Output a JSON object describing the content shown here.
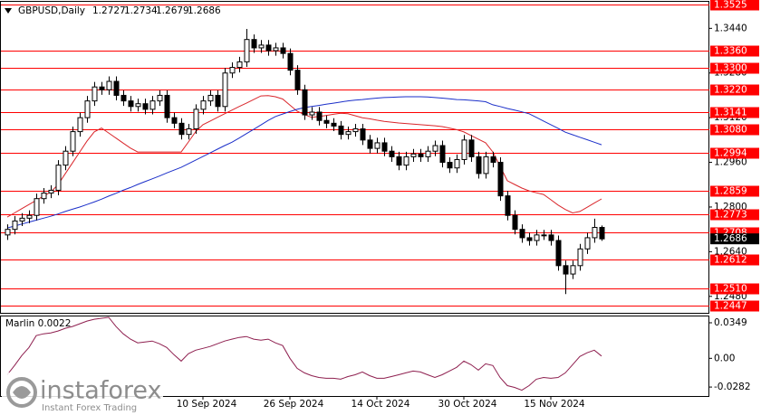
{
  "chart_data": [
    {
      "type": "candlestick",
      "title": "GBPUSD,Daily",
      "categories": [
        null,
        null,
        null,
        null,
        null,
        null,
        null,
        null,
        null,
        null,
        null,
        null,
        null,
        null,
        null,
        null,
        null,
        null,
        null,
        null,
        null,
        null,
        null,
        null,
        null,
        null,
        null,
        "10 Sep 2024",
        null,
        null,
        null,
        null,
        null,
        null,
        null,
        null,
        null,
        null,
        null,
        "26 Sep 2024",
        null,
        null,
        null,
        null,
        null,
        null,
        null,
        null,
        null,
        null,
        null,
        "14 Oct 2024",
        null,
        null,
        null,
        null,
        null,
        null,
        null,
        null,
        null,
        null,
        null,
        "30 Oct 2024",
        null,
        null,
        null,
        null,
        null,
        null,
        null,
        null,
        null,
        null,
        null,
        "15 Nov 2024",
        null,
        null,
        null,
        null,
        null,
        null,
        null
      ],
      "open": [
        1.27,
        1.272,
        1.275,
        1.276,
        1.277,
        1.283,
        1.285,
        1.286,
        1.295,
        1.3,
        1.307,
        1.312,
        1.318,
        1.323,
        1.322,
        1.325,
        1.32,
        1.318,
        1.316,
        1.317,
        1.315,
        1.318,
        1.32,
        1.312,
        1.31,
        1.306,
        1.308,
        1.315,
        1.318,
        1.32,
        1.316,
        1.328,
        1.33,
        1.332,
        1.34,
        1.337,
        1.338,
        1.336,
        1.337,
        1.335,
        1.329,
        1.322,
        1.313,
        1.314,
        1.311,
        1.31,
        1.309,
        1.306,
        1.307,
        1.308,
        1.304,
        1.301,
        1.303,
        1.3,
        1.298,
        1.295,
        1.298,
        1.299,
        1.298,
        1.3,
        1.302,
        1.296,
        1.294,
        1.297,
        1.304,
        1.298,
        1.292,
        1.298,
        1.296,
        1.284,
        1.277,
        1.272,
        1.269,
        1.268,
        1.27,
        1.27,
        1.268,
        1.259,
        1.256,
        1.259,
        1.265,
        1.269,
        1.2727
      ],
      "high": [
        1.2738,
        1.2768,
        1.2778,
        1.2788,
        1.2848,
        1.2868,
        1.2878,
        1.2968,
        1.3018,
        1.3088,
        1.3138,
        1.3198,
        1.3248,
        1.3248,
        1.3268,
        1.3268,
        1.3218,
        1.3198,
        1.3188,
        1.3188,
        1.3198,
        1.3218,
        1.3218,
        1.3138,
        1.3118,
        1.3098,
        1.3168,
        1.3198,
        1.3218,
        1.3218,
        1.3298,
        1.3318,
        1.3338,
        1.3438,
        1.3418,
        1.3398,
        1.3398,
        1.3388,
        1.3388,
        1.3368,
        1.3308,
        1.3238,
        1.3158,
        1.3158,
        1.3128,
        1.3118,
        1.3108,
        1.3088,
        1.3098,
        1.3098,
        1.3058,
        1.3048,
        1.3048,
        1.3018,
        1.2998,
        1.2998,
        1.3008,
        1.3008,
        1.3018,
        1.3038,
        1.3038,
        1.2978,
        1.2988,
        1.3058,
        1.3058,
        1.2998,
        1.2998,
        1.2998,
        1.2978,
        1.2858,
        1.2788,
        1.2738,
        1.2708,
        1.2718,
        1.2718,
        1.2718,
        1.2698,
        1.2608,
        1.2608,
        1.2668,
        1.2708,
        1.2758,
        1.2734
      ],
      "low": [
        1.2682,
        1.2702,
        1.2732,
        1.2742,
        1.2752,
        1.2812,
        1.2832,
        1.2842,
        1.2932,
        1.2982,
        1.3052,
        1.3102,
        1.3162,
        1.3202,
        1.3202,
        1.3182,
        1.3162,
        1.3142,
        1.3142,
        1.3132,
        1.3132,
        1.3162,
        1.3102,
        1.3082,
        1.3042,
        1.3042,
        1.3062,
        1.3132,
        1.3162,
        1.3142,
        1.3142,
        1.3262,
        1.3282,
        1.3302,
        1.3352,
        1.3352,
        1.3342,
        1.3342,
        1.3332,
        1.3272,
        1.3202,
        1.3112,
        1.3112,
        1.3092,
        1.3082,
        1.3072,
        1.3042,
        1.3042,
        1.3052,
        1.3022,
        1.2992,
        1.2992,
        1.2982,
        1.2962,
        1.2932,
        1.2932,
        1.2962,
        1.2962,
        1.2962,
        1.2982,
        1.2942,
        1.2922,
        1.2922,
        1.2952,
        1.2962,
        1.2902,
        1.2902,
        1.2942,
        1.2822,
        1.2752,
        1.2702,
        1.2672,
        1.2662,
        1.2662,
        1.2682,
        1.2662,
        1.2572,
        1.2488,
        1.2542,
        1.2572,
        1.2632,
        1.2672,
        1.2679
      ],
      "close": [
        1.272,
        1.275,
        1.276,
        1.277,
        1.283,
        1.285,
        1.286,
        1.295,
        1.3,
        1.307,
        1.312,
        1.318,
        1.323,
        1.322,
        1.325,
        1.32,
        1.318,
        1.316,
        1.317,
        1.315,
        1.318,
        1.32,
        1.312,
        1.31,
        1.306,
        1.308,
        1.315,
        1.318,
        1.32,
        1.316,
        1.328,
        1.33,
        1.332,
        1.34,
        1.337,
        1.338,
        1.336,
        1.337,
        1.335,
        1.329,
        1.322,
        1.313,
        1.314,
        1.311,
        1.31,
        1.309,
        1.306,
        1.307,
        1.308,
        1.304,
        1.301,
        1.303,
        1.3,
        1.298,
        1.295,
        1.298,
        1.299,
        1.298,
        1.3,
        1.302,
        1.296,
        1.294,
        1.297,
        1.304,
        1.298,
        1.292,
        1.298,
        1.296,
        1.284,
        1.277,
        1.272,
        1.269,
        1.268,
        1.27,
        1.27,
        1.268,
        1.259,
        1.256,
        1.259,
        1.265,
        1.269,
        1.2727,
        1.2686
      ],
      "up_color": "#ffffff",
      "down_color": "#000000",
      "overlays": [
        {
          "color": "#d9262b",
          "values": [
            1.2764,
            1.2779,
            1.2794,
            1.2809,
            1.2824,
            1.2839,
            1.2854,
            1.288,
            1.2919,
            1.2958,
            1.2997,
            1.3036,
            1.3069,
            1.3083,
            1.3065,
            1.3047,
            1.3029,
            1.3011,
            1.2997,
            1.2997,
            1.2997,
            1.2997,
            1.2997,
            1.2997,
            1.2997,
            1.3033,
            1.307,
            1.3095,
            1.3108,
            1.3121,
            1.3134,
            1.3147,
            1.316,
            1.3172,
            1.3185,
            1.3198,
            1.3199,
            1.3195,
            1.3187,
            1.3165,
            1.3143,
            1.3131,
            1.3121,
            1.3124,
            1.3128,
            1.3132,
            1.3136,
            1.3134,
            1.3127,
            1.312,
            1.3116,
            1.3111,
            1.3107,
            1.3104,
            1.3101,
            1.3099,
            1.3097,
            1.3095,
            1.3093,
            1.3091,
            1.3088,
            1.3083,
            1.3077,
            1.3069,
            1.3056,
            1.3043,
            1.303,
            1.2997,
            1.2946,
            1.2894,
            1.2881,
            1.2868,
            1.2858,
            1.2851,
            1.2845,
            1.2826,
            1.2807,
            1.2791,
            1.2779,
            1.2784,
            1.2799,
            1.2814,
            1.2829
          ]
        },
        {
          "color": "#1b2fc9",
          "values": [
            1.2725,
            1.2732,
            1.2739,
            1.2746,
            1.2753,
            1.276,
            1.2767,
            1.2775,
            1.2784,
            1.2792,
            1.28,
            1.2809,
            1.2818,
            1.2828,
            1.2839,
            1.2849,
            1.286,
            1.287,
            1.2881,
            1.2891,
            1.2901,
            1.2911,
            1.2922,
            1.2932,
            1.2942,
            1.2955,
            1.2968,
            1.2981,
            1.2994,
            1.3007,
            1.302,
            1.3032,
            1.3047,
            1.3063,
            1.3078,
            1.3094,
            1.311,
            1.3124,
            1.3133,
            1.3142,
            1.315,
            1.3156,
            1.316,
            1.3164,
            1.3168,
            1.3172,
            1.3176,
            1.318,
            1.3183,
            1.3185,
            1.3188,
            1.319,
            1.3192,
            1.3193,
            1.3194,
            1.3195,
            1.3195,
            1.3195,
            1.3194,
            1.3192,
            1.319,
            1.3188,
            1.3185,
            1.3184,
            1.3182,
            1.318,
            1.3177,
            1.3166,
            1.316,
            1.3153,
            1.3147,
            1.3141,
            1.3134,
            1.3121,
            1.3108,
            1.3095,
            1.3082,
            1.3068,
            1.3059,
            1.305,
            1.3041,
            1.3032,
            1.3023
          ]
        }
      ],
      "levels": {
        "color": "#ff0000",
        "values": [
          1.3525,
          {
            "value": 1.336,
            "label": "1.3360"
          },
          {
            "value": 1.33,
            "label": "1.3300"
          },
          {
            "value": 1.322,
            "label": "1.3220"
          },
          1.3141,
          {
            "value": 1.308,
            "label": "1.3080"
          },
          1.2994,
          1.2859,
          1.2773,
          1.2708,
          1.2612,
          {
            "value": 1.251,
            "label": "1.2510"
          },
          1.2447
        ]
      },
      "ylim": [
        1.2421,
        1.3535
      ],
      "yticks": [
        {
          "value": 1.344,
          "label": "1.3440"
        },
        {
          "value": 1.328,
          "label": "1.3280"
        },
        {
          "value": 1.312,
          "label": "1.3120"
        },
        {
          "value": 1.296,
          "label": "1.2960"
        },
        {
          "value": 1.28,
          "label": "1.2800"
        },
        {
          "value": 1.264,
          "label": "1.2640"
        },
        {
          "value": 1.248,
          "label": "1.2480"
        }
      ],
      "grid": false
    },
    {
      "type": "line",
      "title": "Marlin 0.0022",
      "color": "#8e1f4f",
      "values": [
        -0.0161,
        -0.0071,
        0.0027,
        0.0107,
        0.0223,
        0.0241,
        0.025,
        0.0268,
        0.0295,
        0.0313,
        0.0339,
        0.0366,
        0.0384,
        0.0393,
        0.0402,
        0.0313,
        0.0241,
        0.0188,
        0.0152,
        0.0161,
        0.017,
        0.0143,
        0.0107,
        0.0036,
        -0.0027,
        0.0045,
        0.008,
        0.0098,
        0.0116,
        0.0143,
        0.017,
        0.0188,
        0.0205,
        0.0214,
        0.0188,
        0.0179,
        0.0188,
        0.0152,
        0.0125,
        0,
        -0.0098,
        -0.0143,
        -0.017,
        -0.0188,
        -0.0196,
        -0.0196,
        -0.0205,
        -0.0179,
        -0.0161,
        -0.0134,
        -0.017,
        -0.0196,
        -0.0196,
        -0.0179,
        -0.0161,
        -0.0143,
        -0.0125,
        -0.0134,
        -0.0161,
        -0.0188,
        -0.0161,
        -0.0125,
        -0.0089,
        -0.0027,
        -0.0063,
        -0.0116,
        -0.0054,
        -0.0071,
        -0.0188,
        -0.0268,
        -0.0286,
        -0.0313,
        -0.0268,
        -0.0205,
        -0.0188,
        -0.0196,
        -0.0188,
        -0.0143,
        -0.0063,
        0.0018,
        0.0054,
        0.008,
        0.0022
      ],
      "ylim": [
        -0.037,
        0.042
      ],
      "yticks": [
        0.0349,
        {
          "value": 0,
          "label": "0.00"
        },
        -0.0282
      ]
    }
  ],
  "watermark": {
    "name": "instaforex",
    "tagline": "Instant Forex Trading"
  }
}
